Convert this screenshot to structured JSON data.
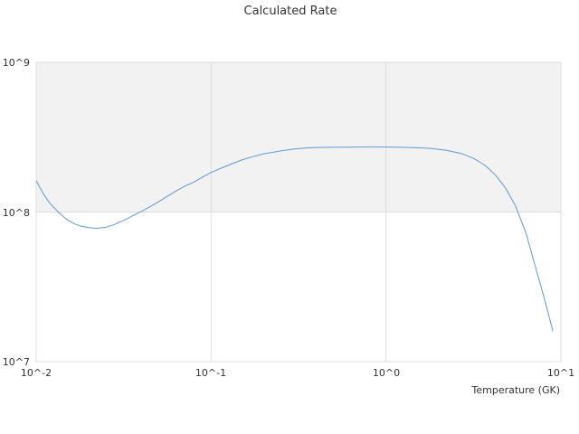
{
  "chart_data": {
    "type": "line",
    "title": "Calculated Rate",
    "xlabel": "Temperature (GK)",
    "ylabel": "",
    "xscale": "log",
    "yscale": "log",
    "xlim": [
      0.01,
      10
    ],
    "ylim": [
      10000000,
      1000000000
    ],
    "x_ticks": [
      "10^-2",
      "10^-1",
      "10^0",
      "10^1"
    ],
    "y_ticks": [
      "10^7",
      "10^8",
      "10^9"
    ],
    "grid": true,
    "shaded_band": {
      "y_from": 100000000,
      "y_to": 1000000000,
      "color": "#f2f2f2"
    },
    "series": [
      {
        "color": "#5b9bd5",
        "x": [
          0.01,
          0.011,
          0.012,
          0.0135,
          0.015,
          0.0165,
          0.018,
          0.02,
          0.022,
          0.025,
          0.028,
          0.032,
          0.036,
          0.04,
          0.045,
          0.05,
          0.056,
          0.063,
          0.07,
          0.08,
          0.09,
          0.1,
          0.115,
          0.13,
          0.15,
          0.17,
          0.2,
          0.23,
          0.26,
          0.3,
          0.35,
          0.4,
          0.5,
          0.6,
          0.7,
          0.8,
          1.0,
          1.2,
          1.5,
          1.8,
          2.2,
          2.7,
          3.2,
          3.7,
          4.2,
          4.8,
          5.5,
          6.3,
          7.0,
          8.0,
          9.0
        ],
        "y": [
          162000000,
          132000000,
          114000000,
          99000000,
          89000000,
          83500000,
          80500000,
          78700000,
          77900000,
          79000000,
          82500000,
          88500000,
          95000000,
          101000000,
          109000000,
          117000000,
          127000000,
          138000000,
          148000000,
          159000000,
          172000000,
          184000000,
          197000000,
          209000000,
          223000000,
          233000000,
          245000000,
          252000000,
          258000000,
          264000000,
          268000000,
          270000000,
          271000000,
          271500000,
          272000000,
          272000000,
          272000000,
          271000000,
          269000000,
          266000000,
          259000000,
          246000000,
          227000000,
          204000000,
          178000000,
          146000000,
          110000000,
          73000000,
          47000000,
          27000000,
          16000000
        ]
      }
    ]
  }
}
